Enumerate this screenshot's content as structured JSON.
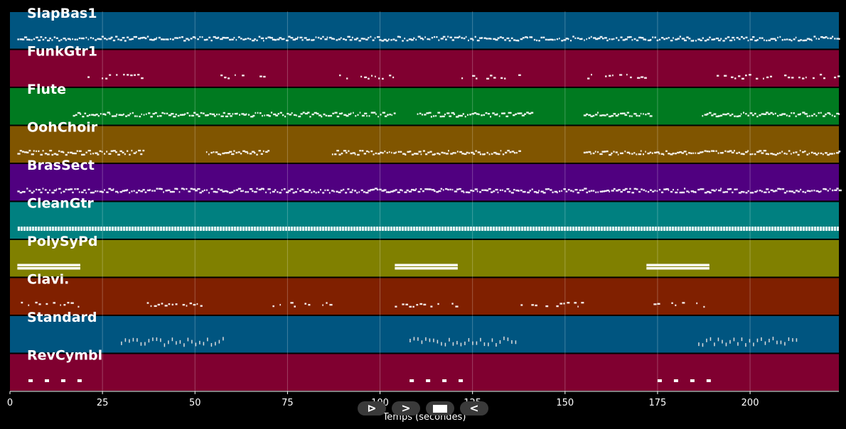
{
  "chart_data": {
    "type": "piano-roll",
    "xlabel": "Temps (secondes)",
    "xlim": [
      0,
      224
    ],
    "x_ticks": [
      0,
      25,
      50,
      75,
      100,
      125,
      150,
      175,
      200
    ],
    "grid": true,
    "tracks": [
      {
        "name": "SlapBas1",
        "color": "#005580",
        "segments": [
          [
            2,
            224
          ]
        ],
        "style": "notes"
      },
      {
        "name": "FunkGtr1",
        "color": "#800030",
        "segments": [
          [
            20,
            36
          ],
          [
            54,
            70
          ],
          [
            88,
            104
          ],
          [
            122,
            138
          ],
          [
            156,
            172
          ],
          [
            190,
            224
          ]
        ],
        "style": "sparse"
      },
      {
        "name": "Flute",
        "color": "#007a20",
        "segments": [
          [
            17,
            104
          ],
          [
            110,
            141
          ],
          [
            155,
            173
          ],
          [
            187,
            224
          ]
        ],
        "style": "notes"
      },
      {
        "name": "OohChoir",
        "color": "#805500",
        "segments": [
          [
            2,
            36
          ],
          [
            53,
            70
          ],
          [
            87,
            138
          ],
          [
            155,
            224
          ]
        ],
        "style": "notes"
      },
      {
        "name": "BrasSect",
        "color": "#500080",
        "segments": [
          [
            2,
            224
          ]
        ],
        "style": "notes"
      },
      {
        "name": "CleanGtr",
        "color": "#008080",
        "segments": [
          [
            2,
            224
          ]
        ],
        "style": "dense"
      },
      {
        "name": "PolySyPd",
        "color": "#808000",
        "segments": [
          [
            2,
            19
          ],
          [
            104,
            121
          ],
          [
            172,
            189
          ]
        ],
        "style": "blocks"
      },
      {
        "name": "Clavi.",
        "color": "#802000",
        "segments": [
          [
            2,
            19
          ],
          [
            37,
            53
          ],
          [
            70,
            87
          ],
          [
            104,
            121
          ],
          [
            138,
            155
          ],
          [
            172,
            189
          ]
        ],
        "style": "sparse"
      },
      {
        "name": "Standard",
        "color": "#005580",
        "segments": [
          [
            30,
            58
          ],
          [
            108,
            137
          ],
          [
            186,
            213
          ]
        ],
        "style": "drums"
      },
      {
        "name": "RevCymbl",
        "color": "#800030",
        "segments": [
          [
            5,
            20
          ],
          [
            108,
            123
          ],
          [
            175,
            190
          ]
        ],
        "style": "dashes"
      }
    ]
  },
  "controls": {
    "play_label": "⊳",
    "forward_label": ">",
    "back_label": "<"
  }
}
